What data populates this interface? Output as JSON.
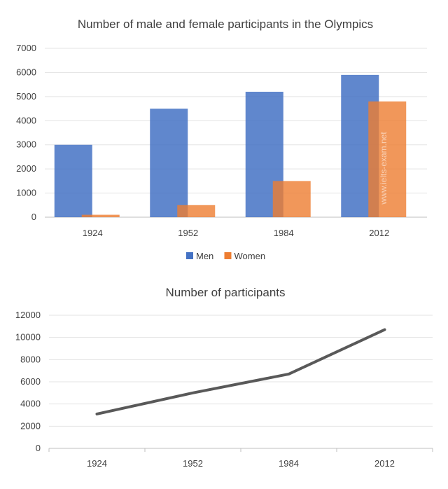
{
  "chart_data": [
    {
      "type": "bar",
      "title": "Number of male and female participants in the Olympics",
      "categories": [
        "1924",
        "1952",
        "1984",
        "2012"
      ],
      "series": [
        {
          "name": "Men",
          "values": [
            3000,
            4500,
            5200,
            5900
          ],
          "color": "#4472c4"
        },
        {
          "name": "Women",
          "values": [
            100,
            500,
            1500,
            4800
          ],
          "color": "#ed7d31"
        }
      ],
      "ylim": [
        0,
        7000
      ],
      "yticks": [
        0,
        1000,
        2000,
        3000,
        4000,
        5000,
        6000,
        7000
      ],
      "grid": true,
      "legend": "bottom",
      "watermark": "www.ielts-exam.net"
    },
    {
      "type": "line",
      "title": "Number of participants",
      "categories": [
        "1924",
        "1952",
        "1984",
        "2012"
      ],
      "series": [
        {
          "values": [
            3100,
            5000,
            6700,
            10700
          ],
          "color": "#595959"
        }
      ],
      "ylim": [
        0,
        12000
      ],
      "yticks": [
        0,
        2000,
        4000,
        6000,
        8000,
        10000,
        12000
      ],
      "grid": true,
      "legend": "none"
    }
  ]
}
